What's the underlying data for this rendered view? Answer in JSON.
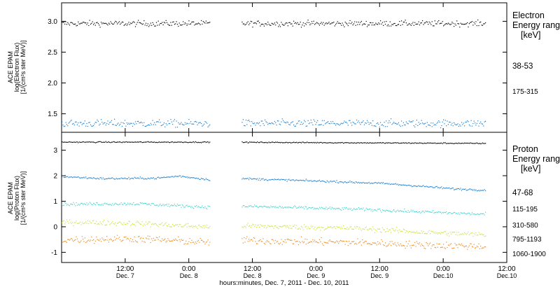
{
  "chart_data": [
    {
      "type": "scatter",
      "title": "",
      "ylabel_lines": [
        "ACE EPAM",
        "log(Electron Flux)",
        "[1/(cm²s ster MeV)]"
      ],
      "ylim": [
        1.2,
        3.3
      ],
      "yticks": [
        1.5,
        2.0,
        2.5,
        3.0
      ],
      "ytick_labels": [
        "1.5",
        "2.0",
        "2.5",
        "3.0"
      ],
      "legend_title": [
        "Electron",
        "Energy ranges",
        "[keV]"
      ],
      "series": [
        {
          "name": "38-53",
          "color": "#000000",
          "level": 2.97,
          "noise": 0.045,
          "ranges": [
            [
              0,
              14
            ],
            [
              17,
              40
            ]
          ],
          "variability": "quiet"
        },
        {
          "name": "175-315",
          "color": "#1a7fd0",
          "level": 1.35,
          "noise": 0.06,
          "ranges": [
            [
              0,
              14
            ],
            [
              17,
              40
            ]
          ],
          "variability": "quiet"
        }
      ]
    },
    {
      "type": "scatter",
      "title": "",
      "ylabel_lines": [
        "ACE EPAM",
        "log(Proton Flux)",
        "[1/(cm²s ster MeV)]"
      ],
      "ylim": [
        -1.4,
        3.7
      ],
      "yticks": [
        -1,
        0,
        1,
        2,
        3
      ],
      "ytick_labels": [
        "-1",
        "0",
        "1",
        "2",
        "3"
      ],
      "legend_title": [
        "Proton",
        "Energy ranges",
        "[keV]"
      ],
      "series": [
        {
          "name": "47-68",
          "color": "#000000",
          "points": [
            [
              0,
              3.33
            ],
            [
              14,
              3.33
            ],
            [
              20,
              3.32
            ],
            [
              30,
              3.3
            ],
            [
              40,
              3.28
            ]
          ],
          "noise": 0.02
        },
        {
          "name": "115-195",
          "color": "#1a7fd0",
          "points": [
            [
              0,
              1.98
            ],
            [
              4,
              1.9
            ],
            [
              9,
              1.92
            ],
            [
              11,
              2.0
            ],
            [
              14,
              1.86
            ],
            [
              17,
              1.9
            ],
            [
              26,
              1.78
            ],
            [
              30,
              1.72
            ],
            [
              34,
              1.6
            ],
            [
              37,
              1.5
            ],
            [
              40,
              1.45
            ]
          ],
          "noise": 0.04
        },
        {
          "name": "310-580",
          "color": "#38d8d0",
          "points": [
            [
              0,
              0.9
            ],
            [
              7,
              0.92
            ],
            [
              14,
              0.78
            ],
            [
              17,
              0.82
            ],
            [
              28,
              0.7
            ],
            [
              34,
              0.6
            ],
            [
              40,
              0.5
            ]
          ],
          "noise": 0.06
        },
        {
          "name": "795-1193",
          "color": "#c8e63a",
          "points": [
            [
              0,
              0.2
            ],
            [
              7,
              0.15
            ],
            [
              14,
              0.0
            ],
            [
              17,
              0.05
            ],
            [
              28,
              -0.05
            ],
            [
              34,
              -0.2
            ],
            [
              40,
              -0.3
            ]
          ],
          "noise": 0.1
        },
        {
          "name": "1060-1900",
          "color": "#ec8a22",
          "points": [
            [
              0,
              -0.5
            ],
            [
              7,
              -0.45
            ],
            [
              14,
              -0.6
            ],
            [
              17,
              -0.52
            ],
            [
              28,
              -0.6
            ],
            [
              34,
              -0.7
            ],
            [
              40,
              -0.75
            ]
          ],
          "noise": 0.14
        }
      ]
    }
  ],
  "x_axis": {
    "xlim": [
      0,
      42
    ],
    "ticks": [
      {
        "x": 0,
        "time": "",
        "date": ""
      },
      {
        "x": 6,
        "time": "12:00",
        "date": "Dec. 7"
      },
      {
        "x": 12,
        "time": "0:00",
        "date": "Dec. 8"
      },
      {
        "x": 18,
        "time": "12:00",
        "date": "Dec. 8"
      },
      {
        "x": 24,
        "time": "0:00",
        "date": "Dec. 9"
      },
      {
        "x": 30,
        "time": "12:00",
        "date": "Dec. 9"
      },
      {
        "x": 36,
        "time": "0:00",
        "date": "Dec.10"
      },
      {
        "x": 42,
        "time": "12:00",
        "date": "Dec.10"
      }
    ],
    "xlabel": "hours:minutes, Dec.  7, 2011 - Dec. 10, 2011"
  }
}
